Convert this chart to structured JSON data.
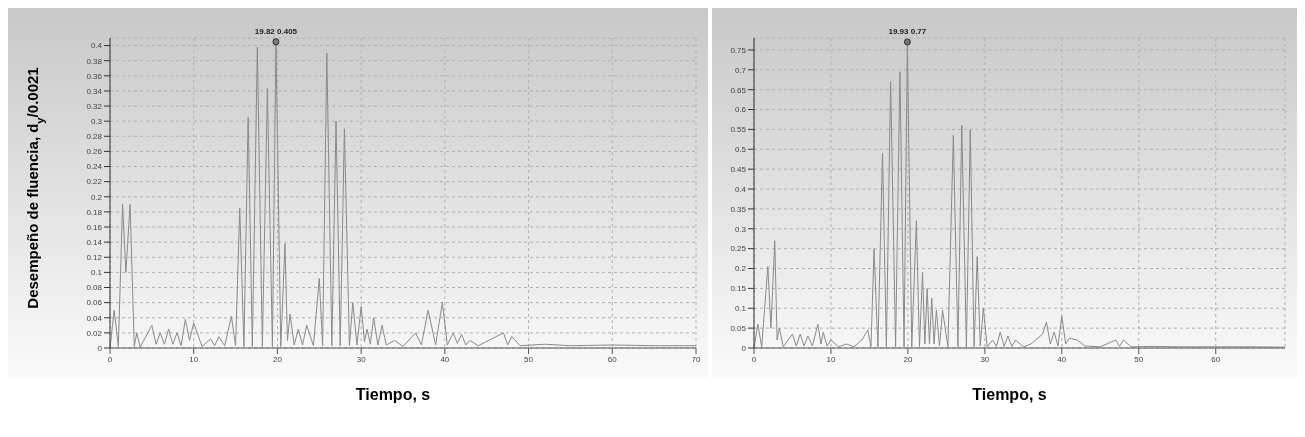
{
  "chart_data": [
    {
      "type": "line",
      "ylabel": "Desempeño de fluencia, d$_{y}$/0.0021",
      "xlabel": "Tiempo, s",
      "xlim": [
        0,
        70
      ],
      "xticks": [
        0,
        10,
        20,
        30,
        40,
        50,
        60,
        70
      ],
      "ylim": [
        0,
        0.41
      ],
      "yticks": [
        0,
        0.02,
        0.04,
        0.06,
        0.08,
        0.1,
        0.12,
        0.14,
        0.16,
        0.18,
        0.2,
        0.22,
        0.24,
        0.26,
        0.28,
        0.3,
        0.32,
        0.34,
        0.36,
        0.38,
        0.4
      ],
      "grid": true,
      "legend": false,
      "marker": "none",
      "line_style": "solid",
      "annotations": [
        {
          "text": "19.82 0.405",
          "x": 19.82,
          "y": 0.405
        }
      ],
      "x": [
        0,
        0.5,
        1,
        1.5,
        1.9,
        2.4,
        2.9,
        3.2,
        3.6,
        5,
        5.5,
        6,
        6.5,
        7,
        7.5,
        8,
        8.5,
        9,
        9.5,
        10,
        11,
        12,
        12.5,
        13,
        13.7,
        14.5,
        15,
        15.5,
        16,
        16.5,
        17,
        17.6,
        18.2,
        18.8,
        19.4,
        19.82,
        20.4,
        20.9,
        21.2,
        21.5,
        22,
        22.5,
        23,
        23.5,
        24.3,
        25,
        25.4,
        25.9,
        26.5,
        27,
        27.5,
        28,
        28.6,
        29,
        29.5,
        30,
        30.4,
        30.7,
        31.1,
        31.5,
        32,
        32.5,
        33,
        34,
        35,
        36.5,
        37.2,
        38,
        38.9,
        39.7,
        40.3,
        41,
        41.5,
        42,
        42.5,
        43,
        44,
        47,
        47.5,
        48,
        49,
        52,
        55,
        60,
        65,
        70
      ],
      "series": [
        {
          "color": "#8a8a8a",
          "values": [
            0,
            0.05,
            0.002,
            0.19,
            0.1,
            0.19,
            0.002,
            0.02,
            0.001,
            0.03,
            0.005,
            0.02,
            0.005,
            0.025,
            0.005,
            0.02,
            0.003,
            0.038,
            0.01,
            0.033,
            0.002,
            0.012,
            0.003,
            0.015,
            0.003,
            0.042,
            0.003,
            0.185,
            0.002,
            0.305,
            0.002,
            0.398,
            0.002,
            0.343,
            0.002,
            0.405,
            0.002,
            0.138,
            0.01,
            0.045,
            0.004,
            0.025,
            0.004,
            0.03,
            0.003,
            0.092,
            0.003,
            0.39,
            0.003,
            0.3,
            0.003,
            0.29,
            0.003,
            0.06,
            0.004,
            0.055,
            0.008,
            0.025,
            0.005,
            0.04,
            0.004,
            0.03,
            0.004,
            0.01,
            0.002,
            0.02,
            0.004,
            0.05,
            0.004,
            0.06,
            0.004,
            0.02,
            0.006,
            0.018,
            0.004,
            0.01,
            0.003,
            0.02,
            0.004,
            0.015,
            0.003,
            0.005,
            0.003,
            0.004,
            0.003,
            0.003
          ]
        }
      ]
    },
    {
      "type": "line",
      "xlabel": "Tiempo, s",
      "xlim": [
        0,
        69
      ],
      "xticks": [
        0,
        10,
        20,
        30,
        40,
        50,
        60
      ],
      "ylim": [
        0,
        0.78
      ],
      "yticks": [
        0,
        0.05,
        0.1,
        0.15,
        0.2,
        0.25,
        0.3,
        0.35,
        0.4,
        0.45,
        0.5,
        0.55,
        0.6,
        0.65,
        0.7,
        0.75
      ],
      "grid": true,
      "legend": false,
      "marker": "none",
      "line_style": "solid",
      "annotations": [
        {
          "text": "19.93 0.77",
          "x": 19.93,
          "y": 0.77
        }
      ],
      "x": [
        0,
        0.5,
        1,
        1.8,
        2.2,
        2.7,
        3,
        3.3,
        3.8,
        5,
        5.5,
        6,
        6.5,
        7,
        7.6,
        8.3,
        8.7,
        9,
        9.5,
        10,
        11,
        12,
        13,
        14,
        14.8,
        15.2,
        15.6,
        16.1,
        16.7,
        17.2,
        17.75,
        18.4,
        18.96,
        19.5,
        19.93,
        20.5,
        21.1,
        21.5,
        21.9,
        22.2,
        22.5,
        22.8,
        23.1,
        23.4,
        23.7,
        24.1,
        24.5,
        25.2,
        25.9,
        26.5,
        27,
        27.6,
        28.1,
        28.6,
        29,
        29.4,
        29.8,
        30.3,
        31,
        31.5,
        32,
        32.5,
        33,
        33.5,
        34,
        35,
        36,
        37.5,
        38,
        38.5,
        39,
        39.5,
        40,
        40.5,
        41,
        42,
        43,
        45,
        47,
        47.5,
        48,
        49,
        52,
        55,
        60,
        65,
        69
      ],
      "series": [
        {
          "color": "#8a8a8a",
          "values": [
            0,
            0.06,
            0.003,
            0.205,
            0.05,
            0.27,
            0.02,
            0.05,
            0.003,
            0.035,
            0.005,
            0.035,
            0.005,
            0.03,
            0.005,
            0.06,
            0.01,
            0.04,
            0.005,
            0.02,
            0.003,
            0.01,
            0.003,
            0.02,
            0.045,
            0.003,
            0.25,
            0.003,
            0.49,
            0.003,
            0.67,
            0.003,
            0.695,
            0.003,
            0.77,
            0.003,
            0.32,
            0.003,
            0.19,
            0.01,
            0.15,
            0.01,
            0.125,
            0.01,
            0.095,
            0.005,
            0.095,
            0.003,
            0.535,
            0.003,
            0.56,
            0.003,
            0.55,
            0.003,
            0.23,
            0.005,
            0.1,
            0.003,
            0.02,
            0.004,
            0.04,
            0.004,
            0.03,
            0.004,
            0.02,
            0.003,
            0.01,
            0.035,
            0.065,
            0.01,
            0.04,
            0.005,
            0.08,
            0.01,
            0.025,
            0.02,
            0.005,
            0.003,
            0.02,
            0.004,
            0.02,
            0.003,
            0.004,
            0.003,
            0.003,
            0.003,
            0.002
          ]
        }
      ]
    }
  ]
}
